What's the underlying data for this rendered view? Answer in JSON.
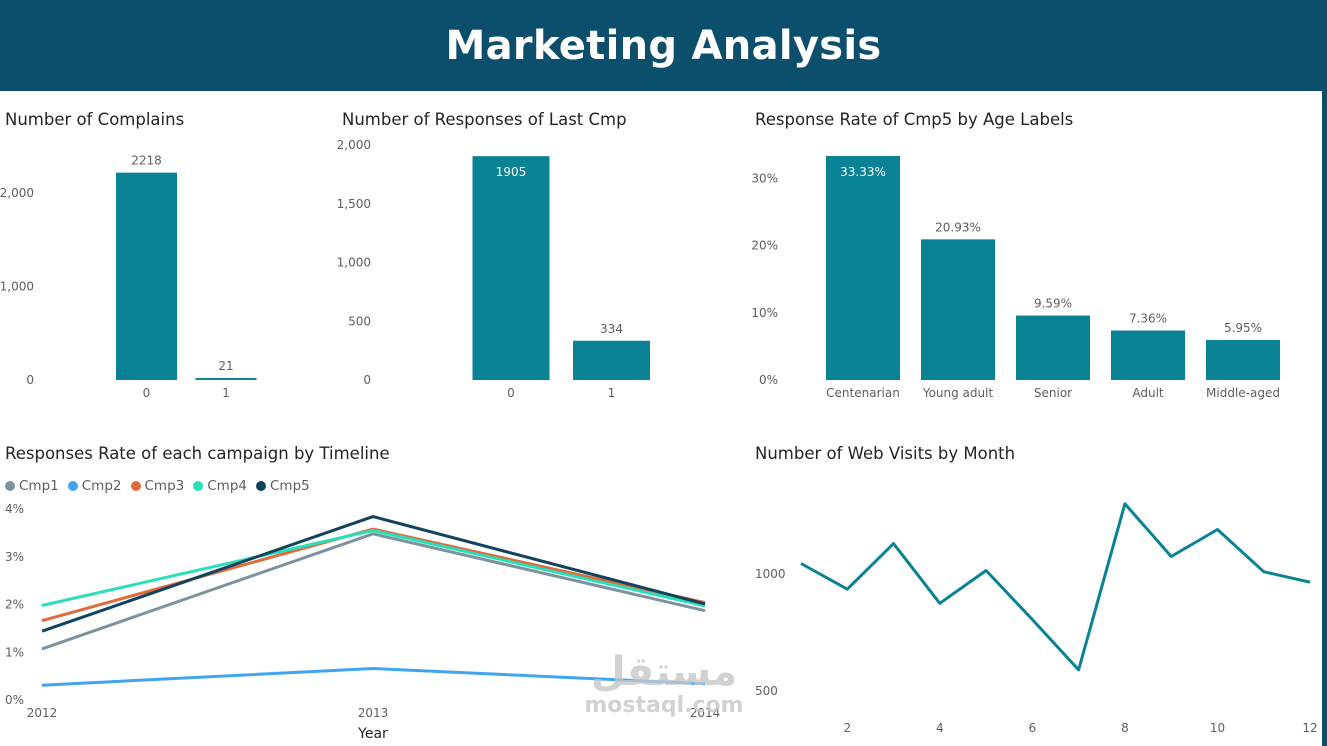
{
  "header": {
    "title": "Marketing Analysis"
  },
  "watermark": {
    "arabic": "مستقل",
    "latin": "mostaql.com"
  },
  "colors": {
    "bar": "#0a8296",
    "header": "#0b4f6c"
  },
  "chart_data": [
    {
      "id": "complains",
      "type": "bar",
      "title": "Number of Complains",
      "categories": [
        "0",
        "1"
      ],
      "values": [
        2218,
        21
      ],
      "ylim": [
        0,
        2300
      ],
      "yticks": [
        0,
        1000,
        2000
      ],
      "ytick_labels": [
        "0",
        "1,000",
        "2,000"
      ],
      "data_labels": [
        "2218",
        "21"
      ],
      "color": "#0a8296"
    },
    {
      "id": "responses",
      "type": "bar",
      "title": "Number of Responses of Last Cmp",
      "categories": [
        "0",
        "1"
      ],
      "values": [
        1905,
        334
      ],
      "ylim": [
        0,
        2000
      ],
      "yticks": [
        0,
        500,
        1000,
        1500,
        2000
      ],
      "ytick_labels": [
        "0",
        "500",
        "1,000",
        "1,500",
        "2,000"
      ],
      "data_labels": [
        "1905",
        "334"
      ],
      "color": "#0a8296"
    },
    {
      "id": "age",
      "type": "bar",
      "title": "Response Rate of Cmp5 by Age Labels",
      "categories": [
        "Centenarian",
        "Young adult",
        "Senior",
        "Adult",
        "Middle-aged"
      ],
      "values": [
        33.33,
        20.93,
        9.59,
        7.36,
        5.95
      ],
      "ylim": [
        0,
        33.33
      ],
      "yticks": [
        0,
        10,
        20,
        30
      ],
      "ytick_labels": [
        "0%",
        "10%",
        "20%",
        "30%"
      ],
      "data_labels": [
        "33.33%",
        "20.93%",
        "9.59%",
        "7.36%",
        "5.95%"
      ],
      "color": "#0a8296"
    },
    {
      "id": "timeline",
      "type": "line",
      "title": "Responses Rate of each campaign by Timeline",
      "xlabel": "Year",
      "x": [
        "2012",
        "2013",
        "2014"
      ],
      "ylim": [
        0,
        4
      ],
      "yticks": [
        0,
        1,
        2,
        3,
        4
      ],
      "ytick_labels": [
        "0%",
        "1%",
        "2%",
        "3%",
        "4%"
      ],
      "legend_position": "top-left",
      "series": [
        {
          "name": "Cmp1",
          "color": "#7d929f",
          "values": [
            1.07,
            3.48,
            1.87
          ]
        },
        {
          "name": "Cmp2",
          "color": "#41a4f0",
          "values": [
            0.31,
            0.66,
            0.34
          ]
        },
        {
          "name": "Cmp3",
          "color": "#e06a3c",
          "values": [
            1.66,
            3.58,
            2.04
          ]
        },
        {
          "name": "Cmp4",
          "color": "#27e0b8",
          "values": [
            1.98,
            3.55,
            1.97
          ]
        },
        {
          "name": "Cmp5",
          "color": "#10445e",
          "values": [
            1.44,
            3.84,
            2.01
          ]
        }
      ]
    },
    {
      "id": "webvisits",
      "type": "line",
      "title": "Number of Web Visits by Month",
      "x": [
        1,
        2,
        3,
        4,
        5,
        6,
        7,
        8,
        9,
        10,
        11,
        12
      ],
      "xticks": [
        "2",
        "4",
        "6",
        "8",
        "10",
        "12"
      ],
      "ylim": [
        420,
        1330
      ],
      "yticks": [
        500,
        1000
      ],
      "ytick_labels": [
        "500",
        "1000"
      ],
      "color": "#0a8296",
      "values": [
        1045,
        935,
        1130,
        875,
        1015,
        805,
        590,
        1300,
        1075,
        1190,
        1010,
        965
      ]
    }
  ]
}
